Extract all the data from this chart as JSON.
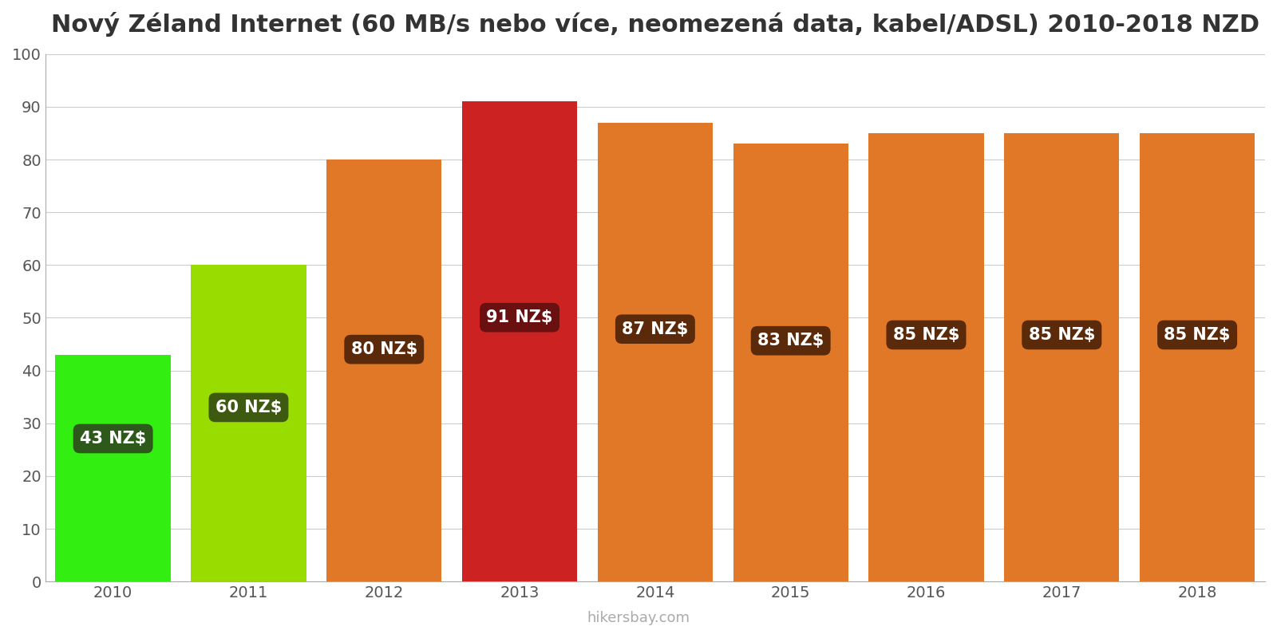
{
  "title": "Nový Zéland Internet (60 MB/s nebo více, neomezená data, kabel/ADSL) 2010-2018 NZD",
  "years": [
    2010,
    2011,
    2012,
    2013,
    2014,
    2015,
    2016,
    2017,
    2018
  ],
  "values": [
    43,
    60,
    80,
    91,
    87,
    83,
    85,
    85,
    85
  ],
  "bar_colors": [
    "#33ee11",
    "#99dd00",
    "#e07828",
    "#cc2222",
    "#e07828",
    "#e07828",
    "#e07828",
    "#e07828",
    "#e07828"
  ],
  "label_bg_colors": [
    "#2d5a1a",
    "#3d5a10",
    "#5a2a0a",
    "#6a1010",
    "#5a2a0a",
    "#5a2a0a",
    "#5a2a0a",
    "#5a2a0a",
    "#5a2a0a"
  ],
  "labels": [
    "43 NZ$",
    "60 NZ$",
    "80 NZ$",
    "91 NZ$",
    "87 NZ$",
    "83 NZ$",
    "85 NZ$",
    "85 NZ$",
    "85 NZ$"
  ],
  "label_y_fractions": [
    0.63,
    0.55,
    0.55,
    0.55,
    0.55,
    0.55,
    0.55,
    0.55,
    0.55
  ],
  "ylim": [
    0,
    100
  ],
  "yticks": [
    0,
    10,
    20,
    30,
    40,
    50,
    60,
    70,
    80,
    90,
    100
  ],
  "watermark": "hikersbay.com",
  "background_color": "#ffffff",
  "grid_color": "#cccccc",
  "title_color": "#333333",
  "label_text_color": "#ffffff",
  "tick_color": "#555555",
  "label_fontsize": 15,
  "title_fontsize": 22,
  "bar_width": 0.85
}
